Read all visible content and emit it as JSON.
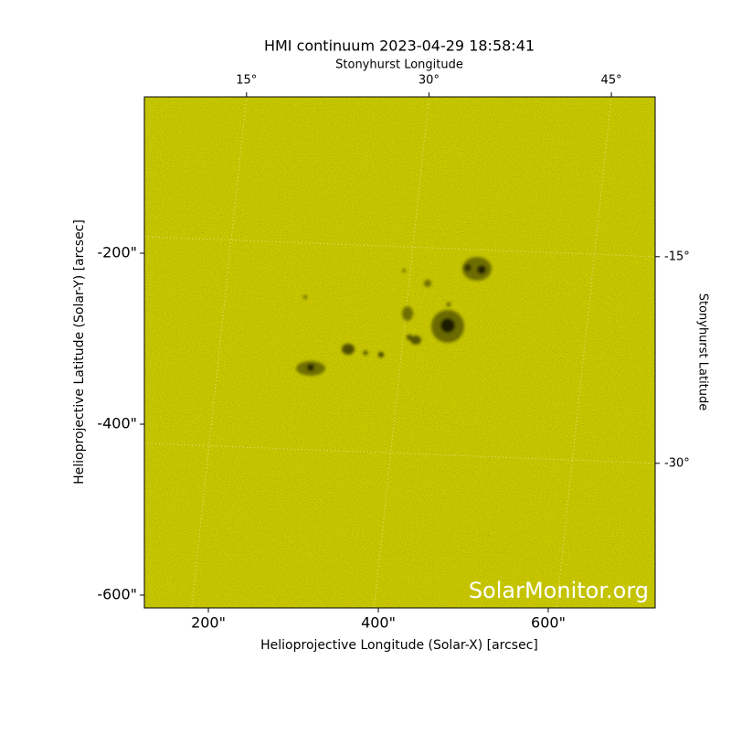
{
  "chart_data": {
    "type": "image",
    "title": "HMI continuum 2023-04-29 18:58:41",
    "xlabel": "Helioprojective Longitude (Solar-X) [arcsec]",
    "ylabel": "Helioprojective Latitude (Solar-Y) [arcsec]",
    "x2label": "Stonyhurst Longitude",
    "y2label": "Stonyhurst Latitude",
    "watermark": "SolarMonitor.org",
    "xlim": [
      124.7,
      725.8
    ],
    "xticks": [
      {
        "value": 200,
        "label": "200\""
      },
      {
        "value": 400,
        "label": "400\""
      },
      {
        "value": 600,
        "label": "600\""
      }
    ],
    "ylim": [
      -615,
      -17.1
    ],
    "yticks": [
      {
        "value": -200,
        "label": "-200\""
      },
      {
        "value": -400,
        "label": "-400\""
      },
      {
        "value": -600,
        "label": "-600\""
      }
    ],
    "x2lim": [
      6.6,
      48.6
    ],
    "x2ticks": [
      {
        "value": 15,
        "label": "15°"
      },
      {
        "value": 30,
        "label": "30°"
      },
      {
        "value": 45,
        "label": "45°"
      }
    ],
    "y2lim": [
      -40.5,
      -3.4
    ],
    "y2ticks": [
      {
        "value": -15,
        "label": "-15°"
      },
      {
        "value": -30,
        "label": "-30°"
      }
    ],
    "grid": true,
    "color": "#c9c800"
  }
}
